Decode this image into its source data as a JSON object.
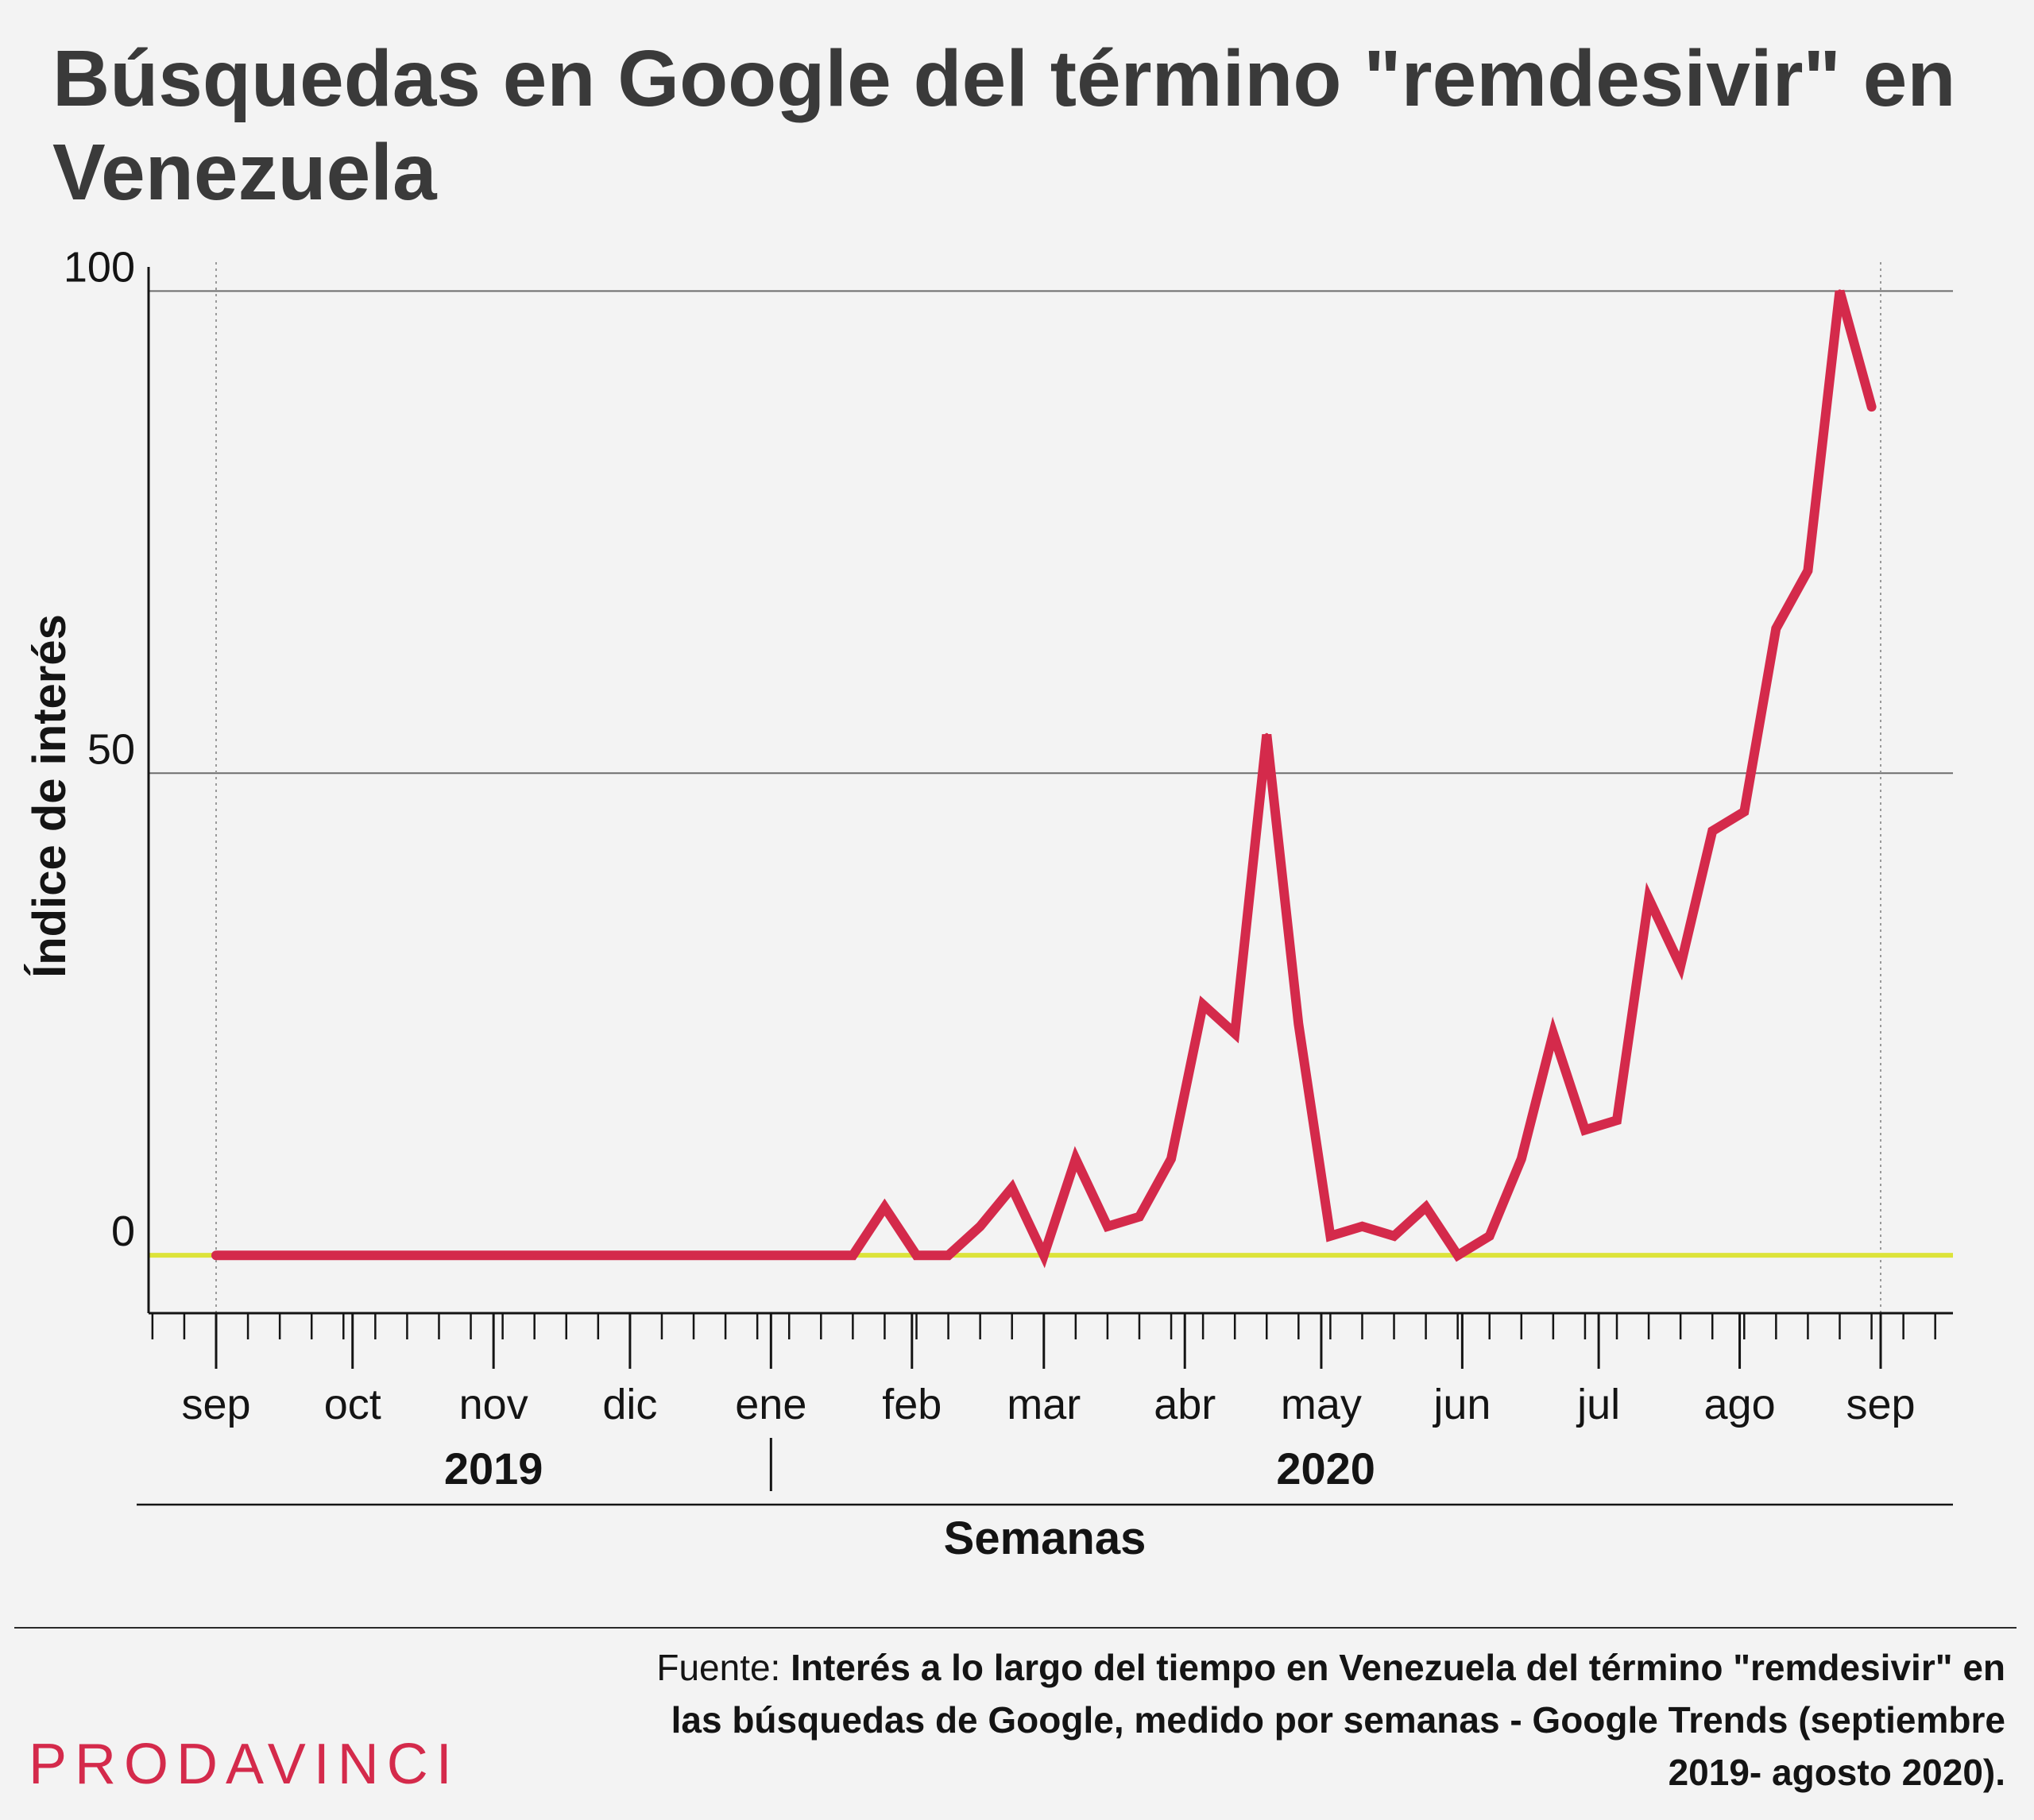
{
  "title": "Búsquedas en Google del término \"remdesivir\" en Venezuela",
  "source_prefix": "Fuente: ",
  "source_text": "Interés a lo largo del tiempo en Venezuela del término \"remdesivir\" en las búsquedas de Google, medido por semanas - Google Trends (septiembre 2019- agosto 2020).",
  "logo_text": "PRODAVINCI",
  "colors": {
    "background": "#f3f3f3",
    "line": "#d42a4b",
    "zero_line": "#dce33a",
    "title": "#3a3a3a",
    "logo": "#d42a4b"
  },
  "chart_data": {
    "type": "line",
    "xlabel": "Semanas",
    "ylabel": "Índice de interés",
    "ylim": [
      -6,
      103
    ],
    "yticks": [
      0,
      50,
      100
    ],
    "grid": "horizontal",
    "month_ticks": [
      {
        "label": "sep",
        "date": "2019-09-01"
      },
      {
        "label": "oct",
        "date": "2019-10-01"
      },
      {
        "label": "nov",
        "date": "2019-11-01"
      },
      {
        "label": "dic",
        "date": "2019-12-01"
      },
      {
        "label": "ene",
        "date": "2020-01-01"
      },
      {
        "label": "feb",
        "date": "2020-02-01"
      },
      {
        "label": "mar",
        "date": "2020-03-01"
      },
      {
        "label": "abr",
        "date": "2020-04-01"
      },
      {
        "label": "may",
        "date": "2020-05-01"
      },
      {
        "label": "jun",
        "date": "2020-06-01"
      },
      {
        "label": "jul",
        "date": "2020-07-01"
      },
      {
        "label": "ago",
        "date": "2020-08-01"
      },
      {
        "label": "sep",
        "date": "2020-09-01"
      }
    ],
    "years": [
      {
        "label": "2019",
        "from": "2019-09-01",
        "to": "2020-01-01"
      },
      {
        "label": "2020",
        "from": "2020-01-01",
        "to": "2020-09-01"
      }
    ],
    "series": [
      {
        "x": [
          "2019-09-01",
          "2019-09-08",
          "2019-09-15",
          "2019-09-22",
          "2019-09-29",
          "2019-10-06",
          "2019-10-13",
          "2019-10-20",
          "2019-10-27",
          "2019-11-03",
          "2019-11-10",
          "2019-11-17",
          "2019-11-24",
          "2019-12-01",
          "2019-12-08",
          "2019-12-15",
          "2019-12-22",
          "2019-12-29",
          "2020-01-05",
          "2020-01-12",
          "2020-01-19",
          "2020-01-26",
          "2020-02-02",
          "2020-02-09",
          "2020-02-16",
          "2020-02-23",
          "2020-03-01",
          "2020-03-08",
          "2020-03-15",
          "2020-03-22",
          "2020-03-29",
          "2020-04-05",
          "2020-04-12",
          "2020-04-19",
          "2020-04-26",
          "2020-05-03",
          "2020-05-10",
          "2020-05-17",
          "2020-05-24",
          "2020-05-31",
          "2020-06-07",
          "2020-06-14",
          "2020-06-21",
          "2020-06-28",
          "2020-07-05",
          "2020-07-12",
          "2020-07-19",
          "2020-07-26",
          "2020-08-02",
          "2020-08-09",
          "2020-08-16",
          "2020-08-23",
          "2020-08-30"
        ],
        "values": [
          0,
          0,
          0,
          0,
          0,
          0,
          0,
          0,
          0,
          0,
          0,
          0,
          0,
          0,
          0,
          0,
          0,
          0,
          0,
          0,
          0,
          5,
          0,
          0,
          3,
          7,
          0,
          10,
          3,
          4,
          10,
          26,
          23,
          54,
          24,
          2,
          3,
          2,
          5,
          0,
          2,
          10,
          23,
          13,
          14,
          37,
          30,
          44,
          46,
          65,
          71,
          100,
          88
        ]
      }
    ]
  }
}
